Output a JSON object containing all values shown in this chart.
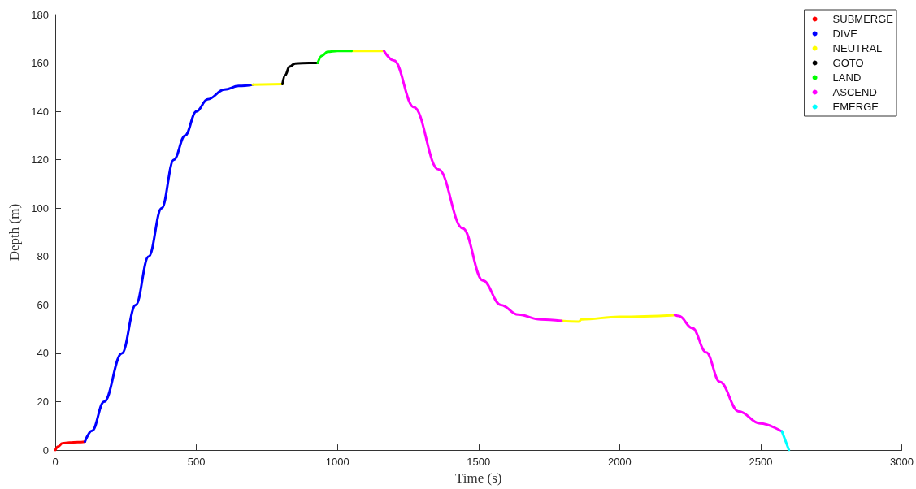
{
  "chart_data": {
    "type": "line",
    "xlabel": "Time (s)",
    "ylabel": "Depth (m)",
    "xlim": [
      0,
      3000
    ],
    "xticks": [
      0,
      500,
      1000,
      1500,
      2000,
      2500,
      3000
    ],
    "ylim": [
      0,
      180
    ],
    "yticks": [
      0,
      20,
      40,
      60,
      80,
      100,
      120,
      140,
      160,
      180
    ],
    "grid": false,
    "legend": "top right",
    "marker": "none",
    "line_style": "solid",
    "series": [
      {
        "name": "SUBMERGE",
        "color": "#ff0000",
        "x": [
          0,
          10,
          25,
          50,
          80,
          105
        ],
        "values": [
          0,
          1.5,
          2.8,
          3.1,
          3.3,
          3.5
        ]
      },
      {
        "name": "DIVE",
        "color": "#0000ff",
        "x": [
          105,
          130,
          173,
          236,
          285,
          331,
          377,
          420,
          460,
          500,
          540,
          600,
          650,
          700
        ],
        "values": [
          3.5,
          8,
          20,
          40,
          60,
          80,
          100,
          120,
          130,
          140,
          145,
          149,
          150.5,
          151
        ]
      },
      {
        "name": "NEUTRAL",
        "color": "#ffff00",
        "x": [
          700,
          805,
          null,
          1050,
          1165,
          null,
          1794,
          1855,
          1865,
          1999,
          2196
        ],
        "values": [
          151,
          151.3,
          null,
          165,
          165,
          null,
          53.4,
          53.1,
          54,
          55.1,
          55.8
        ]
      },
      {
        "name": "GOTO",
        "color": "#000000",
        "x": [
          805,
          815,
          830,
          850,
          900,
          930
        ],
        "values": [
          151.3,
          155,
          158.5,
          159.8,
          160,
          160
        ]
      },
      {
        "name": "LAND",
        "color": "#00ff00",
        "x": [
          930,
          945,
          965,
          1000,
          1050
        ],
        "values": [
          160,
          163,
          164.6,
          165,
          165
        ]
      },
      {
        "name": "ASCEND",
        "color": "#ff00ff",
        "x": [
          1165,
          1200,
          1271,
          1358,
          1444,
          1516,
          1579,
          1640,
          1720,
          1794,
          null,
          2196,
          2210,
          2258,
          2307,
          2355,
          2422,
          2498,
          2575
        ],
        "values": [
          165,
          161,
          141.7,
          116,
          91.7,
          70,
          60,
          56,
          54,
          53.4,
          null,
          55.8,
          55.4,
          50.4,
          40.4,
          28.2,
          16,
          11,
          7.7
        ]
      },
      {
        "name": "EMERGE",
        "color": "#00ffff",
        "x": [
          2575,
          2600
        ],
        "values": [
          7.8,
          0
        ]
      }
    ]
  }
}
